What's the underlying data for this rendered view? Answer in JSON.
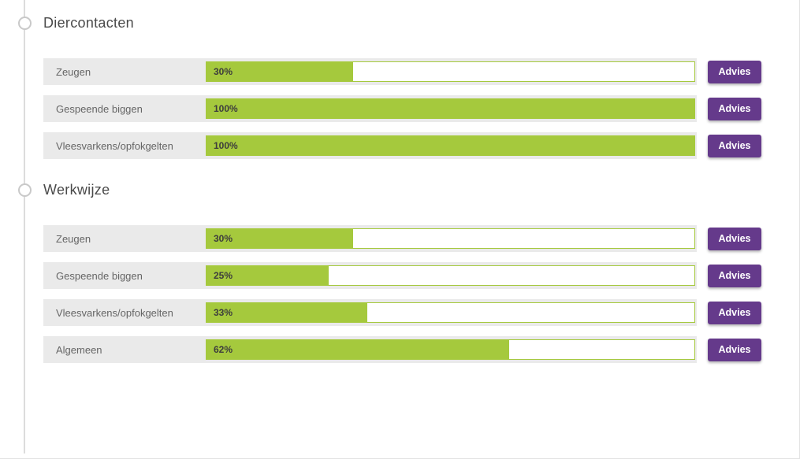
{
  "colors": {
    "progress_green": "#a5c93d",
    "button_purple": "#653a8b",
    "row_background": "#eaeaea",
    "timeline_gray": "#dcdcdc",
    "title_text": "#4a4a4a"
  },
  "sections": [
    {
      "title": "Diercontacten",
      "rows": [
        {
          "label": "Zeugen",
          "percent": 30,
          "percent_label": "30%",
          "button_label": "Advies"
        },
        {
          "label": "Gespeende biggen",
          "percent": 100,
          "percent_label": "100%",
          "button_label": "Advies"
        },
        {
          "label": "Vleesvarkens/opfokgelten",
          "percent": 100,
          "percent_label": "100%",
          "button_label": "Advies"
        }
      ]
    },
    {
      "title": "Werkwijze",
      "rows": [
        {
          "label": "Zeugen",
          "percent": 30,
          "percent_label": "30%",
          "button_label": "Advies"
        },
        {
          "label": "Gespeende biggen",
          "percent": 25,
          "percent_label": "25%",
          "button_label": "Advies"
        },
        {
          "label": "Vleesvarkens/opfokgelten",
          "percent": 33,
          "percent_label": "33%",
          "button_label": "Advies"
        },
        {
          "label": "Algemeen",
          "percent": 62,
          "percent_label": "62%",
          "button_label": "Advies"
        }
      ]
    }
  ]
}
